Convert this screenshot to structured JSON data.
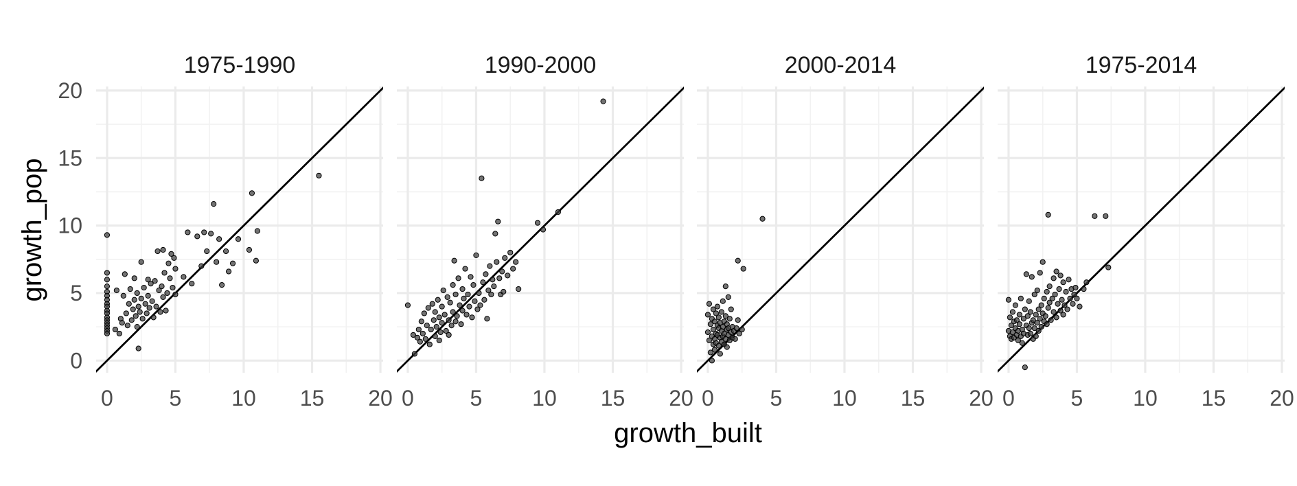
{
  "chart_data": {
    "type": "scatter",
    "x_label": "growth_built",
    "y_label": "growth_pop",
    "xlim": [
      -0.8,
      20.2
    ],
    "ylim": [
      -0.9,
      20.3
    ],
    "x_ticks": [
      0,
      5,
      10,
      15,
      20
    ],
    "y_ticks": [
      0,
      5,
      10,
      15,
      20
    ],
    "x_tick_labels": [
      "0",
      "5",
      "10",
      "15",
      "20"
    ],
    "y_tick_labels": [
      "0",
      "5",
      "10",
      "15",
      "20"
    ],
    "reference_line": {
      "slope": 1,
      "intercept": 0
    },
    "point_color": "#333333",
    "line_color": "#000000",
    "grid_color": "#ebebeb",
    "panels": [
      {
        "title": "1975-1990",
        "points": [
          [
            0,
            9.3
          ],
          [
            0,
            6.5
          ],
          [
            0,
            6.0
          ],
          [
            0,
            5.5
          ],
          [
            0,
            5.1
          ],
          [
            0,
            4.8
          ],
          [
            0,
            4.5
          ],
          [
            0,
            4.2
          ],
          [
            0,
            4.0
          ],
          [
            0,
            3.7
          ],
          [
            0,
            3.5
          ],
          [
            0,
            3.2
          ],
          [
            0,
            3.0
          ],
          [
            0,
            2.8
          ],
          [
            0,
            2.6
          ],
          [
            0,
            2.4
          ],
          [
            0,
            2.2
          ],
          [
            0,
            2.0
          ],
          [
            0.6,
            2.3
          ],
          [
            0.7,
            5.2
          ],
          [
            0.9,
            2.0
          ],
          [
            1.0,
            3.1
          ],
          [
            1.1,
            2.8
          ],
          [
            1.2,
            4.8
          ],
          [
            1.3,
            6.4
          ],
          [
            1.4,
            3.5
          ],
          [
            1.5,
            2.6
          ],
          [
            1.6,
            4.2
          ],
          [
            1.7,
            5.3
          ],
          [
            1.8,
            3.0
          ],
          [
            1.9,
            3.8
          ],
          [
            2.0,
            6.1
          ],
          [
            2.0,
            4.5
          ],
          [
            2.1,
            3.3
          ],
          [
            2.2,
            2.5
          ],
          [
            2.2,
            5.0
          ],
          [
            2.3,
            4.0
          ],
          [
            2.3,
            0.9
          ],
          [
            2.4,
            3.6
          ],
          [
            2.5,
            7.3
          ],
          [
            2.5,
            4.6
          ],
          [
            2.6,
            3.1
          ],
          [
            2.7,
            5.4
          ],
          [
            2.8,
            4.2
          ],
          [
            2.9,
            3.5
          ],
          [
            3.0,
            6.0
          ],
          [
            3.0,
            4.8
          ],
          [
            3.1,
            3.9
          ],
          [
            3.2,
            5.7
          ],
          [
            3.3,
            4.4
          ],
          [
            3.4,
            3.2
          ],
          [
            3.5,
            5.9
          ],
          [
            3.6,
            4.0
          ],
          [
            3.7,
            8.1
          ],
          [
            3.8,
            5.2
          ],
          [
            3.9,
            3.6
          ],
          [
            4.0,
            5.5
          ],
          [
            4.1,
            8.2
          ],
          [
            4.1,
            4.7
          ],
          [
            4.2,
            6.5
          ],
          [
            4.3,
            3.7
          ],
          [
            4.4,
            5.0
          ],
          [
            4.5,
            7.2
          ],
          [
            4.6,
            6.1
          ],
          [
            4.7,
            7.9
          ],
          [
            4.8,
            5.4
          ],
          [
            4.9,
            7.6
          ],
          [
            5.0,
            6.8
          ],
          [
            5.0,
            4.9
          ],
          [
            5.6,
            6.2
          ],
          [
            5.9,
            9.5
          ],
          [
            6.2,
            5.7
          ],
          [
            6.6,
            9.2
          ],
          [
            6.9,
            7.0
          ],
          [
            7.1,
            9.5
          ],
          [
            7.3,
            8.1
          ],
          [
            7.6,
            9.4
          ],
          [
            7.8,
            11.6
          ],
          [
            8.0,
            7.3
          ],
          [
            8.2,
            9.0
          ],
          [
            8.4,
            5.6
          ],
          [
            8.7,
            8.1
          ],
          [
            8.9,
            6.6
          ],
          [
            9.2,
            7.2
          ],
          [
            9.6,
            9.0
          ],
          [
            10.4,
            8.2
          ],
          [
            10.6,
            12.4
          ],
          [
            10.9,
            7.4
          ],
          [
            11.0,
            9.6
          ],
          [
            15.5,
            13.7
          ]
        ]
      },
      {
        "title": "1990-2000",
        "points": [
          [
            0.0,
            4.1
          ],
          [
            0.4,
            1.9
          ],
          [
            0.5,
            0.5
          ],
          [
            0.7,
            1.7
          ],
          [
            0.8,
            2.3
          ],
          [
            0.9,
            1.4
          ],
          [
            1.0,
            2.9
          ],
          [
            1.1,
            2.0
          ],
          [
            1.2,
            3.5
          ],
          [
            1.3,
            1.6
          ],
          [
            1.4,
            2.6
          ],
          [
            1.5,
            3.9
          ],
          [
            1.6,
            1.2
          ],
          [
            1.7,
            2.3
          ],
          [
            1.8,
            4.2
          ],
          [
            1.9,
            3.0
          ],
          [
            2.0,
            1.8
          ],
          [
            2.0,
            3.6
          ],
          [
            2.1,
            2.5
          ],
          [
            2.2,
            4.5
          ],
          [
            2.3,
            1.5
          ],
          [
            2.3,
            3.2
          ],
          [
            2.4,
            2.1
          ],
          [
            2.5,
            4.0
          ],
          [
            2.5,
            2.8
          ],
          [
            2.6,
            5.2
          ],
          [
            2.7,
            3.4
          ],
          [
            2.8,
            2.2
          ],
          [
            2.9,
            4.7
          ],
          [
            3.0,
            3.0
          ],
          [
            3.0,
            1.9
          ],
          [
            3.1,
            4.3
          ],
          [
            3.2,
            2.6
          ],
          [
            3.3,
            5.6
          ],
          [
            3.3,
            3.6
          ],
          [
            3.4,
            7.4
          ],
          [
            3.5,
            2.9
          ],
          [
            3.5,
            4.9
          ],
          [
            3.6,
            3.3
          ],
          [
            3.7,
            6.1
          ],
          [
            3.8,
            4.1
          ],
          [
            3.9,
            2.7
          ],
          [
            4.0,
            5.3
          ],
          [
            4.0,
            3.7
          ],
          [
            4.1,
            4.6
          ],
          [
            4.2,
            6.8
          ],
          [
            4.3,
            3.4
          ],
          [
            4.4,
            4.9
          ],
          [
            4.5,
            4.0
          ],
          [
            4.6,
            6.2
          ],
          [
            4.7,
            3.2
          ],
          [
            4.8,
            5.6
          ],
          [
            4.9,
            4.4
          ],
          [
            5.0,
            7.8
          ],
          [
            5.1,
            3.8
          ],
          [
            5.2,
            5.0
          ],
          [
            5.3,
            4.1
          ],
          [
            5.4,
            13.5
          ],
          [
            5.5,
            5.8
          ],
          [
            5.6,
            4.5
          ],
          [
            5.7,
            6.4
          ],
          [
            5.8,
            3.1
          ],
          [
            5.9,
            5.2
          ],
          [
            6.0,
            7.0
          ],
          [
            6.1,
            4.9
          ],
          [
            6.2,
            6.0
          ],
          [
            6.3,
            5.5
          ],
          [
            6.4,
            9.4
          ],
          [
            6.5,
            7.3
          ],
          [
            6.6,
            10.3
          ],
          [
            6.7,
            6.1
          ],
          [
            6.8,
            4.9
          ],
          [
            6.9,
            6.6
          ],
          [
            7.0,
            5.1
          ],
          [
            7.1,
            7.6
          ],
          [
            7.3,
            6.3
          ],
          [
            7.5,
            8.0
          ],
          [
            7.7,
            6.8
          ],
          [
            7.9,
            7.3
          ],
          [
            8.1,
            5.3
          ],
          [
            9.5,
            10.2
          ],
          [
            9.9,
            9.7
          ],
          [
            11.0,
            11.0
          ],
          [
            14.3,
            19.2
          ]
        ]
      },
      {
        "title": "2000-2014",
        "points": [
          [
            0.0,
            2.1
          ],
          [
            0.0,
            3.4
          ],
          [
            0.1,
            1.5
          ],
          [
            0.1,
            4.2
          ],
          [
            0.2,
            0.6
          ],
          [
            0.2,
            2.7
          ],
          [
            0.3,
            1.8
          ],
          [
            0.3,
            3.1
          ],
          [
            0.3,
            0.0
          ],
          [
            0.4,
            2.3
          ],
          [
            0.4,
            1.2
          ],
          [
            0.4,
            3.8
          ],
          [
            0.5,
            1.6
          ],
          [
            0.5,
            2.9
          ],
          [
            0.5,
            0.8
          ],
          [
            0.6,
            2.0
          ],
          [
            0.6,
            3.5
          ],
          [
            0.6,
            1.3
          ],
          [
            0.7,
            2.6
          ],
          [
            0.7,
            1.9
          ],
          [
            0.7,
            4.0
          ],
          [
            0.8,
            1.1
          ],
          [
            0.8,
            2.4
          ],
          [
            0.8,
            3.2
          ],
          [
            0.9,
            1.7
          ],
          [
            0.9,
            2.8
          ],
          [
            0.9,
            0.5
          ],
          [
            1.0,
            2.2
          ],
          [
            1.0,
            3.6
          ],
          [
            1.0,
            1.4
          ],
          [
            1.1,
            2.5
          ],
          [
            1.1,
            1.8
          ],
          [
            1.1,
            4.4
          ],
          [
            1.2,
            2.9
          ],
          [
            1.2,
            1.2
          ],
          [
            1.2,
            2.0
          ],
          [
            1.3,
            3.3
          ],
          [
            1.3,
            1.6
          ],
          [
            1.3,
            5.5
          ],
          [
            1.4,
            2.3
          ],
          [
            1.4,
            1.0
          ],
          [
            1.4,
            2.7
          ],
          [
            1.5,
            4.7
          ],
          [
            1.5,
            1.9
          ],
          [
            1.5,
            2.4
          ],
          [
            1.6,
            3.1
          ],
          [
            1.6,
            1.5
          ],
          [
            1.7,
            2.1
          ],
          [
            1.7,
            3.8
          ],
          [
            1.8,
            2.5
          ],
          [
            1.8,
            1.7
          ],
          [
            1.9,
            2.2
          ],
          [
            2.0,
            1.6
          ],
          [
            2.1,
            2.4
          ],
          [
            2.2,
            3.0
          ],
          [
            2.3,
            2.0
          ],
          [
            2.5,
            2.3
          ],
          [
            2.2,
            7.4
          ],
          [
            2.6,
            6.8
          ],
          [
            4.0,
            10.5
          ]
        ]
      },
      {
        "title": "1975-2014",
        "points": [
          [
            0.0,
            2.2
          ],
          [
            0.0,
            4.5
          ],
          [
            0.1,
            1.8
          ],
          [
            0.1,
            3.2
          ],
          [
            0.2,
            2.6
          ],
          [
            0.2,
            1.6
          ],
          [
            0.3,
            3.6
          ],
          [
            0.3,
            2.1
          ],
          [
            0.4,
            2.9
          ],
          [
            0.4,
            1.7
          ],
          [
            0.5,
            4.1
          ],
          [
            0.5,
            2.4
          ],
          [
            0.6,
            1.9
          ],
          [
            0.6,
            3.0
          ],
          [
            0.7,
            2.2
          ],
          [
            0.7,
            1.5
          ],
          [
            0.8,
            3.4
          ],
          [
            0.8,
            2.7
          ],
          [
            0.9,
            1.8
          ],
          [
            0.9,
            4.6
          ],
          [
            1.0,
            2.3
          ],
          [
            1.0,
            1.3
          ],
          [
            1.1,
            3.1
          ],
          [
            1.1,
            2.0
          ],
          [
            1.2,
            3.8
          ],
          [
            1.2,
            -0.5
          ],
          [
            1.3,
            2.6
          ],
          [
            1.3,
            6.4
          ],
          [
            1.4,
            1.9
          ],
          [
            1.4,
            3.3
          ],
          [
            1.5,
            2.4
          ],
          [
            1.5,
            4.4
          ],
          [
            1.6,
            2.0
          ],
          [
            1.6,
            3.6
          ],
          [
            1.7,
            2.8
          ],
          [
            1.7,
            6.2
          ],
          [
            1.8,
            1.6
          ],
          [
            1.8,
            3.0
          ],
          [
            1.9,
            2.4
          ],
          [
            1.9,
            4.9
          ],
          [
            2.0,
            3.4
          ],
          [
            2.0,
            1.8
          ],
          [
            2.1,
            2.8
          ],
          [
            2.1,
            5.2
          ],
          [
            2.2,
            3.8
          ],
          [
            2.2,
            2.2
          ],
          [
            2.3,
            3.1
          ],
          [
            2.3,
            6.5
          ],
          [
            2.4,
            4.1
          ],
          [
            2.4,
            2.5
          ],
          [
            2.5,
            3.5
          ],
          [
            2.5,
            7.3
          ],
          [
            2.6,
            2.9
          ],
          [
            2.6,
            4.6
          ],
          [
            2.7,
            3.3
          ],
          [
            2.8,
            5.1
          ],
          [
            2.8,
            2.7
          ],
          [
            2.9,
            10.8
          ],
          [
            2.9,
            3.9
          ],
          [
            3.0,
            4.3
          ],
          [
            3.0,
            5.5
          ],
          [
            3.1,
            3.0
          ],
          [
            3.2,
            4.6
          ],
          [
            3.3,
            6.1
          ],
          [
            3.3,
            3.6
          ],
          [
            3.4,
            4.9
          ],
          [
            3.5,
            3.2
          ],
          [
            3.5,
            6.6
          ],
          [
            3.6,
            4.2
          ],
          [
            3.7,
            5.3
          ],
          [
            3.8,
            3.7
          ],
          [
            3.8,
            6.3
          ],
          [
            3.9,
            4.5
          ],
          [
            4.0,
            5.8
          ],
          [
            4.0,
            3.4
          ],
          [
            4.1,
            4.1
          ],
          [
            4.2,
            5.1
          ],
          [
            4.3,
            3.8
          ],
          [
            4.4,
            6.0
          ],
          [
            4.5,
            4.6
          ],
          [
            4.6,
            5.3
          ],
          [
            4.7,
            4.2
          ],
          [
            4.8,
            4.9
          ],
          [
            4.9,
            5.4
          ],
          [
            5.0,
            4.6
          ],
          [
            5.2,
            4.0
          ],
          [
            5.5,
            5.3
          ],
          [
            5.7,
            5.8
          ],
          [
            6.3,
            10.7
          ],
          [
            7.1,
            10.7
          ],
          [
            7.3,
            6.9
          ]
        ]
      }
    ]
  }
}
